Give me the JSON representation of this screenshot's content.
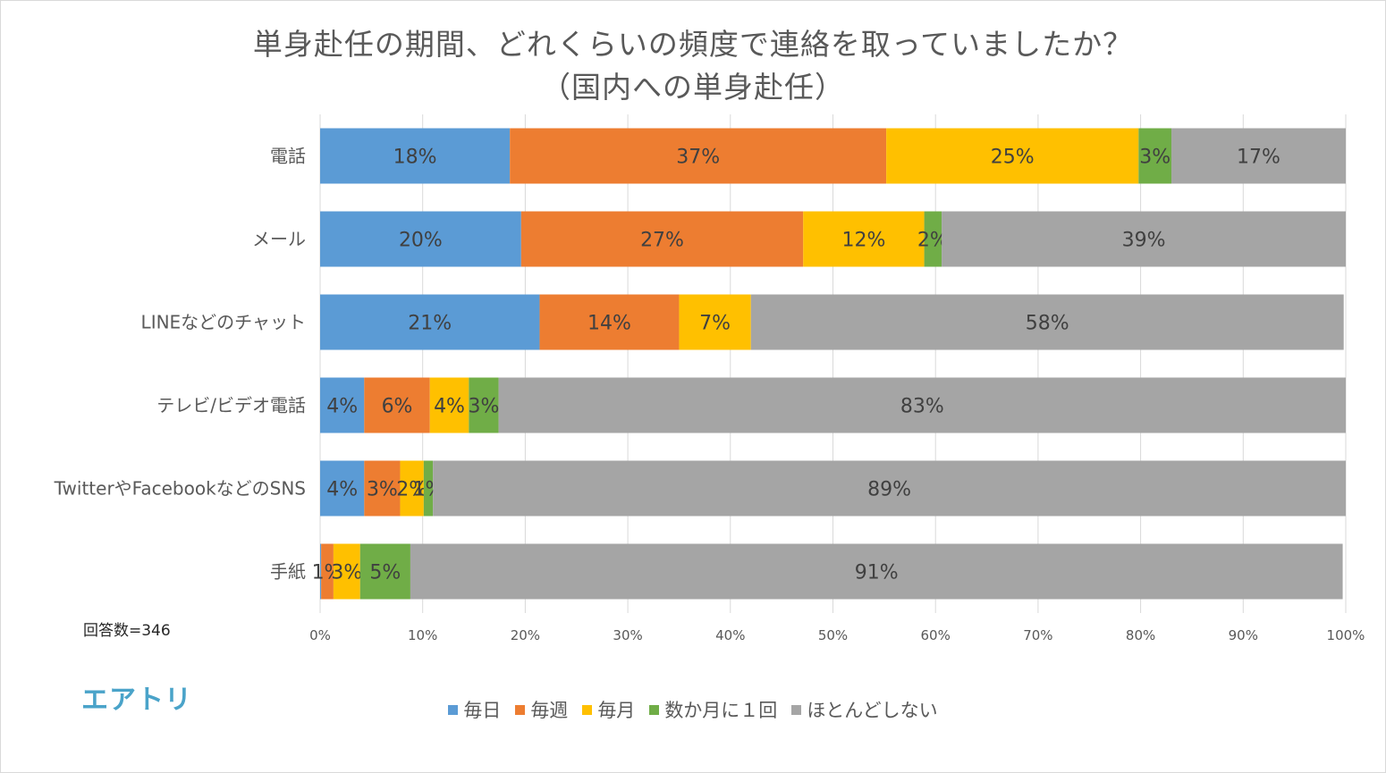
{
  "chart_data": {
    "type": "bar",
    "orientation": "horizontal",
    "stacked": true,
    "title": "単身赴任の期間、どれくらいの頻度で連絡を取っていましたか？",
    "subtitle": "（国内への単身赴任）",
    "categories": [
      "電話",
      "メール",
      "LINEなどのチャット",
      "テレビ/ビデオ電話",
      "TwitterやFacebookなどのSNS",
      "手紙"
    ],
    "series": [
      {
        "name": "毎日",
        "color": "#5b9bd5",
        "values": [
          18.5,
          19.6,
          21.4,
          4.3,
          4.3,
          0.1
        ],
        "labels": [
          "18%",
          "20%",
          "21%",
          "4%",
          "4%",
          ""
        ]
      },
      {
        "name": "毎週",
        "color": "#ed7d31",
        "values": [
          36.7,
          27.5,
          13.6,
          6.4,
          3.5,
          1.2
        ],
        "labels": [
          "37%",
          "27%",
          "14%",
          "6%",
          "3%",
          "1%"
        ]
      },
      {
        "name": "毎月",
        "color": "#ffc000",
        "values": [
          24.6,
          11.8,
          7.0,
          3.8,
          2.3,
          2.6
        ],
        "labels": [
          "25%",
          "12%",
          "7%",
          "4%",
          "2%",
          "3%"
        ]
      },
      {
        "name": "数か月に１回",
        "color": "#70ad47",
        "values": [
          3.2,
          1.7,
          0.0,
          2.9,
          0.9,
          4.9
        ],
        "labels": [
          "3%",
          "2%",
          "",
          "3%",
          "1%",
          "5%"
        ]
      },
      {
        "name": "ほとんどしない",
        "color": "#a5a5a5",
        "values": [
          17.0,
          39.4,
          57.8,
          82.6,
          89.0,
          90.9
        ],
        "labels": [
          "17%",
          "39%",
          "58%",
          "83%",
          "89%",
          "91%"
        ]
      }
    ],
    "xlim": [
      0,
      100
    ],
    "xticks": [
      "0%",
      "10%",
      "20%",
      "30%",
      "40%",
      "50%",
      "60%",
      "70%",
      "80%",
      "90%",
      "100%"
    ],
    "grid": true,
    "legend": "bottom"
  },
  "note": "回答数=346",
  "logo": "エアトリ"
}
